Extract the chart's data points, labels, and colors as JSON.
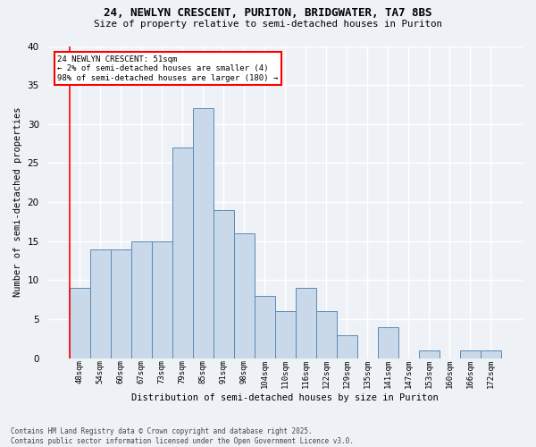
{
  "title1": "24, NEWLYN CRESCENT, PURITON, BRIDGWATER, TA7 8BS",
  "title2": "Size of property relative to semi-detached houses in Puriton",
  "xlabel": "Distribution of semi-detached houses by size in Puriton",
  "ylabel": "Number of semi-detached properties",
  "categories": [
    "48sqm",
    "54sqm",
    "60sqm",
    "67sqm",
    "73sqm",
    "79sqm",
    "85sqm",
    "91sqm",
    "98sqm",
    "104sqm",
    "110sqm",
    "116sqm",
    "122sqm",
    "129sqm",
    "135sqm",
    "141sqm",
    "147sqm",
    "153sqm",
    "160sqm",
    "166sqm",
    "172sqm"
  ],
  "values": [
    9,
    14,
    14,
    15,
    15,
    27,
    32,
    19,
    16,
    8,
    6,
    9,
    6,
    3,
    0,
    4,
    0,
    1,
    0,
    1,
    1
  ],
  "bar_color": "#c9d9ea",
  "bar_edge_color": "#5a8ab5",
  "annotation_text": "24 NEWLYN CRESCENT: 51sqm\n← 2% of semi-detached houses are smaller (4)\n98% of semi-detached houses are larger (180) →",
  "annotation_box_color": "white",
  "annotation_box_edge_color": "red",
  "ylim": [
    0,
    40
  ],
  "yticks": [
    0,
    5,
    10,
    15,
    20,
    25,
    30,
    35,
    40
  ],
  "background_color": "#eef2f7",
  "grid_color": "#ffffff",
  "footer": "Contains HM Land Registry data © Crown copyright and database right 2025.\nContains public sector information licensed under the Open Government Licence v3.0."
}
